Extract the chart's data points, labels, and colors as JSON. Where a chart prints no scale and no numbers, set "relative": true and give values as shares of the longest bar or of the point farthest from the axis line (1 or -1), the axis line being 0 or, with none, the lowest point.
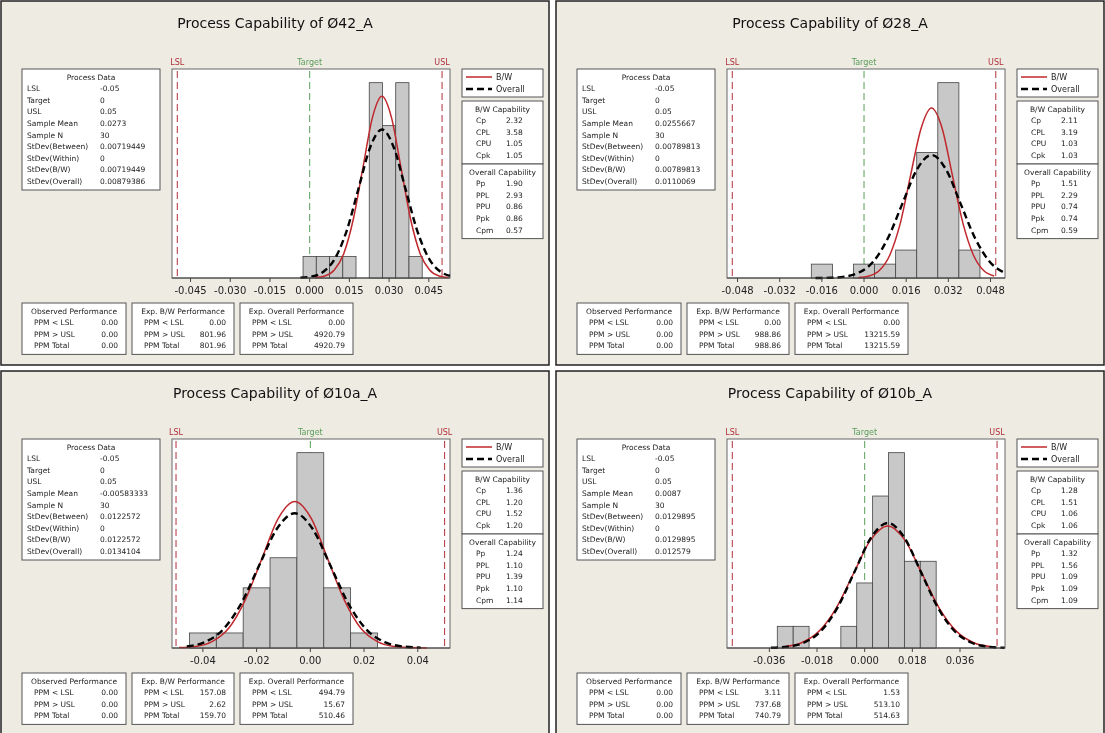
{
  "chart_data": [
    {
      "type": "histogram",
      "title": "Process Capability of Ø42_A",
      "relative": true,
      "legend": "top right",
      "color": "#c8c8c8",
      "bins": [
        -0.0025,
        0.0025,
        0.0075,
        0.0125,
        0.0175,
        0.0225,
        0.0275,
        0.0325,
        0.0375,
        0.0425
      ],
      "values": [
        0.11,
        0.11,
        0.11,
        0.11,
        0,
        1,
        0.78,
        1,
        0.11
      ],
      "series": [
        {
          "name": "B/W",
          "type": "line",
          "color": "#c0282d",
          "line_style": "solid",
          "x": [
            0.0021,
            0.0057,
            0.0093,
            0.0129,
            0.0165,
            0.0201,
            0.0237,
            0.0273,
            0.0309,
            0.0345,
            0.0381,
            0.0417,
            0.0453,
            0.0489,
            0.0525
          ],
          "values": [
            0.002,
            0.01,
            0.041,
            0.126,
            0.302,
            0.564,
            0.821,
            0.93,
            0.821,
            0.564,
            0.302,
            0.126,
            0.041,
            0.01,
            0.002
          ]
        },
        {
          "name": "Overall",
          "type": "line",
          "color": "#000000",
          "line_style": "dashed",
          "x": [
            -0.0035,
            0.0009,
            0.0053,
            0.0097,
            0.0141,
            0.0185,
            0.0229,
            0.0273,
            0.0317,
            0.0361,
            0.0405,
            0.0449,
            0.0493,
            0.053
          ],
          "values": [
            0.002,
            0.008,
            0.033,
            0.103,
            0.247,
            0.461,
            0.671,
            0.76,
            0.671,
            0.461,
            0.247,
            0.103,
            0.033,
            0.011
          ]
        }
      ],
      "xlim": [
        -0.052,
        0.053
      ],
      "xticks": [
        -0.045,
        {
          "value": -0.03,
          "label": "-0.030"
        },
        -0.015,
        {
          "value": 0,
          "label": "0.000"
        },
        0.015,
        {
          "value": 0.03,
          "label": "0.030"
        },
        0.045
      ],
      "ref_lines": [
        {
          "axis": "x",
          "value": -0.05,
          "label": "LSL",
          "color": "#b0303a",
          "line_style": "dashed"
        },
        {
          "axis": "x",
          "value": 0,
          "label": "Target",
          "color": "#5a9e5a",
          "line_style": "dashed"
        },
        {
          "axis": "x",
          "value": 0.05,
          "label": "USL",
          "color": "#b0303a",
          "line_style": "dashed"
        }
      ],
      "annotations": [
        "Process Data",
        "LSL -0.05",
        "Target 0",
        "USL 0.05",
        "Sample Mean 0.0273",
        "Sample N 30",
        "StDev(Between) 0.00719449",
        "StDev(Within) 0",
        "StDev(B/W) 0.00719449",
        "StDev(Overall) 0.00879386",
        "B/W Capability",
        "Cp 2.32",
        "CPL 3.58",
        "CPU 1.05",
        "Cpk 1.05",
        "Overall Capability",
        "Pp 1.90",
        "PPL 2.93",
        "PPU 0.86",
        "Ppk 0.86",
        "Cpm 0.57",
        "Observed Performance",
        "PPM < LSL 0.00",
        "PPM > USL 0.00",
        "PPM Total 0.00",
        "Exp. B/W Performance",
        "PPM < LSL 0.00",
        "PPM > USL 801.96",
        "PPM Total 801.96",
        "Exp. Overall Performance",
        "PPM < LSL 0.00",
        "PPM > USL 4920.79",
        "PPM Total 4920.79"
      ]
    },
    {
      "type": "histogram",
      "title": "Process Capability of Ø28_A",
      "relative": true,
      "legend": "top right",
      "color": "#c8c8c8",
      "bins": [
        -0.02,
        -0.012,
        -0.004,
        0.004,
        0.012,
        0.02,
        0.028,
        0.036,
        0.044
      ],
      "values": [
        0.071,
        0,
        0.071,
        0.071,
        0.143,
        0.643,
        1,
        0.143
      ],
      "series": [
        {
          "name": "B/W",
          "type": "line",
          "color": "#c0282d",
          "line_style": "solid",
          "x": [
            -0.0021,
            0.0019,
            0.0058,
            0.0098,
            0.0138,
            0.0177,
            0.0217,
            0.0256,
            0.0296,
            0.0335,
            0.0375,
            0.0415,
            0.0454,
            0.0494
          ],
          "values": [
            0.002,
            0.01,
            0.038,
            0.118,
            0.282,
            0.528,
            0.768,
            0.87,
            0.768,
            0.528,
            0.282,
            0.118,
            0.038,
            0.01
          ]
        },
        {
          "name": "Overall",
          "type": "line",
          "color": "#000000",
          "line_style": "dashed",
          "x": [
            -0.0184,
            -0.0129,
            -0.0074,
            -0.0019,
            0.0036,
            0.0091,
            0.0146,
            0.0201,
            0.0256,
            0.0311,
            0.0366,
            0.0421,
            0.0476,
            0.0531
          ],
          "values": [
            0,
            0.001,
            0.007,
            0.028,
            0.085,
            0.205,
            0.382,
            0.556,
            0.63,
            0.556,
            0.382,
            0.205,
            0.085,
            0.028
          ]
        }
      ],
      "xlim": [
        -0.052,
        0.0535
      ],
      "xticks": [
        {
          "value": -0.048,
          "label": "-0.048"
        },
        {
          "value": -0.032,
          "label": "-0.032"
        },
        -0.016,
        {
          "value": 0,
          "label": "0.000"
        },
        0.016,
        0.032,
        0.048
      ],
      "ref_lines": [
        {
          "axis": "x",
          "value": -0.05,
          "label": "LSL",
          "color": "#b0303a",
          "line_style": "dashed"
        },
        {
          "axis": "x",
          "value": 0,
          "label": "Target",
          "color": "#5a9e5a",
          "line_style": "dashed"
        },
        {
          "axis": "x",
          "value": 0.05,
          "label": "USL",
          "color": "#b0303a",
          "line_style": "dashed"
        }
      ],
      "annotations": [
        "Process Data",
        "LSL -0.05",
        "Target 0",
        "USL 0.05",
        "Sample Mean 0.0255667",
        "Sample N 30",
        "StDev(Between) 0.00789813",
        "StDev(Within) 0",
        "StDev(B/W) 0.00789813",
        "StDev(Overall) 0.0110069",
        "B/W Capability",
        "Cp 2.11",
        "CPL 3.19",
        "CPU 1.03",
        "Cpk 1.03",
        "Overall Capability",
        "Pp 1.51",
        "PPL 2.29",
        "PPU 0.74",
        "Ppk 0.74",
        "Cpm 0.59",
        "Observed Performance",
        "PPM < LSL 0.00",
        "PPM > USL 0.00",
        "PPM Total 0.00",
        "Exp. B/W Performance",
        "PPM < LSL 0.00",
        "PPM > USL 988.86",
        "PPM Total 988.86",
        "Exp. Overall Performance",
        "PPM < LSL 0.00",
        "PPM > USL 13215.59",
        "PPM Total 13215.59"
      ]
    },
    {
      "type": "histogram",
      "title": "Process Capability of Ø10a_A",
      "relative": true,
      "legend": "top right",
      "color": "#c8c8c8",
      "bins": [
        -0.045,
        -0.035,
        -0.025,
        -0.015,
        -0.005,
        0.005,
        0.015,
        0.025
      ],
      "values": [
        0.077,
        0.077,
        0.308,
        0.462,
        1,
        0.308,
        0.077
      ],
      "series": [
        {
          "name": "B/W",
          "type": "line",
          "color": "#c0282d",
          "line_style": "solid",
          "x": [
            -0.0489,
            -0.0427,
            -0.0366,
            -0.0304,
            -0.0243,
            -0.0181,
            -0.012,
            -0.0058,
            0.0004,
            0.0065,
            0.0127,
            0.0188,
            0.025,
            0.0311,
            0.0373,
            0.0434
          ],
          "values": [
            0.002,
            0.008,
            0.033,
            0.101,
            0.244,
            0.455,
            0.662,
            0.75,
            0.662,
            0.455,
            0.244,
            0.101,
            0.033,
            0.008,
            0.002,
            0
          ]
        },
        {
          "name": "Overall",
          "type": "line",
          "color": "#000000",
          "line_style": "dashed",
          "x": [
            -0.046,
            -0.0393,
            -0.0326,
            -0.0259,
            -0.0192,
            -0.0125,
            -0.0058,
            0.0009,
            0.0076,
            0.0143,
            0.021,
            0.0277,
            0.0344,
            0.0411
          ],
          "values": [
            0.008,
            0.03,
            0.093,
            0.224,
            0.418,
            0.609,
            0.69,
            0.609,
            0.418,
            0.224,
            0.093,
            0.03,
            0.008,
            0.002
          ]
        }
      ],
      "xlim": [
        -0.0515,
        0.052
      ],
      "xticks": [
        -0.04,
        -0.02,
        {
          "value": 0,
          "label": "0.00"
        },
        0.02,
        0.04
      ],
      "ref_lines": [
        {
          "axis": "x",
          "value": -0.05,
          "label": "LSL",
          "color": "#b0303a",
          "line_style": "dashed"
        },
        {
          "axis": "x",
          "value": 0,
          "label": "Target",
          "color": "#5a9e5a",
          "line_style": "dashed"
        },
        {
          "axis": "x",
          "value": 0.05,
          "label": "USL",
          "color": "#b0303a",
          "line_style": "dashed"
        }
      ],
      "annotations": [
        "Process Data",
        "LSL -0.05",
        "Target 0",
        "USL 0.05",
        "Sample Mean -0.00583333",
        "Sample N 30",
        "StDev(Between) 0.0122572",
        "StDev(Within) 0",
        "StDev(B/W) 0.0122572",
        "StDev(Overall) 0.0134104",
        "B/W Capability",
        "Cp 1.36",
        "CPL 1.20",
        "CPU 1.52",
        "Cpk 1.20",
        "Overall Capability",
        "Pp 1.24",
        "PPL 1.10",
        "PPU 1.39",
        "Ppk 1.10",
        "Cpm 1.14",
        "Observed Performance",
        "PPM < LSL 0.00",
        "PPM > USL 0.00",
        "PPM Total 0.00",
        "Exp. B/W Performance",
        "PPM < LSL 157.08",
        "PPM > USL 2.62",
        "PPM Total 159.70",
        "Exp. Overall Performance",
        "PPM < LSL 494.79",
        "PPM > USL 15.67",
        "PPM Total 510.46"
      ]
    },
    {
      "type": "histogram",
      "title": "Process Capability of Ø10b_A",
      "relative": true,
      "legend": "top right",
      "color": "#c8c8c8",
      "bins": [
        -0.033,
        -0.027,
        -0.021,
        -0.015,
        -0.009,
        -0.003,
        0.003,
        0.009,
        0.015,
        0.021,
        0.027
      ],
      "values": [
        0.111,
        0.111,
        0,
        0,
        0.111,
        0.333,
        0.778,
        1,
        0.444,
        0.444
      ],
      "series": [
        {
          "name": "B/W",
          "type": "line",
          "color": "#c0282d",
          "line_style": "solid",
          "x": [
            -0.0303,
            -0.0238,
            -0.0173,
            -0.0108,
            -0.0043,
            0.0022,
            0.0087,
            0.0152,
            0.0217,
            0.0282,
            0.0347,
            0.0412,
            0.0477
          ],
          "values": [
            0.007,
            0.027,
            0.085,
            0.203,
            0.379,
            0.552,
            0.625,
            0.552,
            0.379,
            0.203,
            0.085,
            0.027,
            0.007
          ]
        },
        {
          "name": "Overall",
          "type": "line",
          "color": "#000000",
          "line_style": "dashed",
          "x": [
            -0.0354,
            -0.0291,
            -0.0228,
            -0.0165,
            -0.0102,
            -0.0039,
            0.0024,
            0.0087,
            0.015,
            0.0213,
            0.0276,
            0.0339,
            0.0402,
            0.0465,
            0.0528
          ],
          "values": [
            0.001,
            0.007,
            0.028,
            0.087,
            0.208,
            0.388,
            0.565,
            0.64,
            0.565,
            0.388,
            0.208,
            0.087,
            0.028,
            0.007,
            0.001
          ]
        }
      ],
      "xlim": [
        -0.052,
        0.053
      ],
      "xticks": [
        -0.036,
        -0.018,
        {
          "value": 0,
          "label": "0.000"
        },
        0.018,
        0.036
      ],
      "ref_lines": [
        {
          "axis": "x",
          "value": -0.05,
          "label": "LSL",
          "color": "#b0303a",
          "line_style": "dashed"
        },
        {
          "axis": "x",
          "value": 0,
          "label": "Target",
          "color": "#5a9e5a",
          "line_style": "dashed"
        },
        {
          "axis": "x",
          "value": 0.05,
          "label": "USL",
          "color": "#b0303a",
          "line_style": "dashed"
        }
      ],
      "annotations": [
        "Process Data",
        "LSL -0.05",
        "Target 0",
        "USL 0.05",
        "Sample Mean 0.0087",
        "Sample N 30",
        "StDev(Between) 0.0129895",
        "StDev(Within) 0",
        "StDev(B/W) 0.0129895",
        "StDev(Overall) 0.012579",
        "B/W Capability",
        "Cp 1.28",
        "CPL 1.51",
        "CPU 1.06",
        "Cpk 1.06",
        "Overall Capability",
        "Pp 1.32",
        "PPL 1.56",
        "PPU 1.09",
        "Ppk 1.09",
        "Cpm 1.09",
        "Observed Performance",
        "PPM < LSL 0.00",
        "PPM > USL 0.00",
        "PPM Total 0.00",
        "Exp. B/W Performance",
        "PPM < LSL 3.11",
        "PPM > USL 737.68",
        "PPM Total 740.79",
        "Exp. Overall Performance",
        "PPM < LSL 1.53",
        "PPM > USL 513.10",
        "PPM Total 514.63"
      ]
    }
  ]
}
